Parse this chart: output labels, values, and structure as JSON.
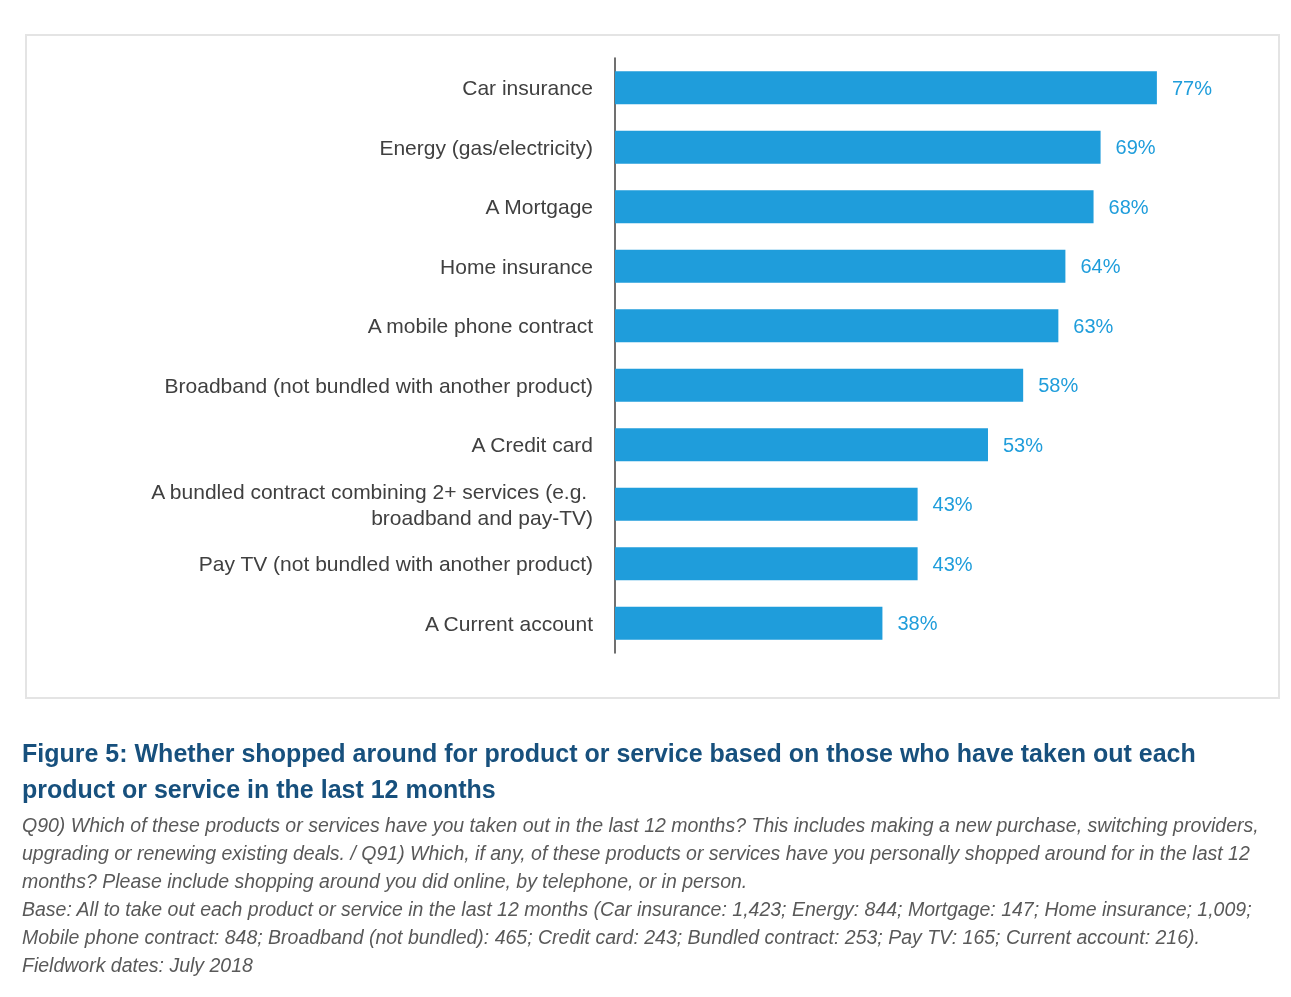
{
  "chart_data": {
    "type": "bar",
    "orientation": "horizontal",
    "title": "Figure 5: Whether shopped around for product or service based on those who have taken out each product or service in the last 12 months",
    "categories": [
      "Car insurance",
      "Energy (gas/electricity)",
      "A Mortgage",
      "Home insurance",
      "A mobile phone contract",
      "Broadband (not bundled with another product)",
      "A Credit card",
      "A bundled contract combining 2+ services (e.g. broadband and pay-TV)",
      "Pay TV (not bundled with another product)",
      "A Current account"
    ],
    "values": [
      77,
      69,
      68,
      64,
      63,
      58,
      53,
      43,
      43,
      38
    ],
    "value_labels": [
      "77%",
      "69%",
      "68%",
      "64%",
      "63%",
      "58%",
      "53%",
      "43%",
      "43%",
      "38%"
    ],
    "color": "#1f9ddb",
    "grid": false,
    "annotations": [
      "Q90) Which of these products or services have you taken out in the last 12 months? This includes making a new purchase, switching providers, upgrading or renewing existing deals. / Q91) Which, if any, of these products or services have you personally shopped around for in the last 12 months? Please include shopping around you did online, by telephone, or in person.",
      "Base: All to take out each product or service in the last 12 months (Car insurance: 1,423; Energy: 844; Mortgage: 147; Home insurance; 1,009; Mobile phone contract: 848; Broadband (not bundled): 465; Credit card: 243; Bundled contract: 253; Pay TV: 165; Current account: 216).",
      "Fieldwork dates: July 2018"
    ]
  }
}
